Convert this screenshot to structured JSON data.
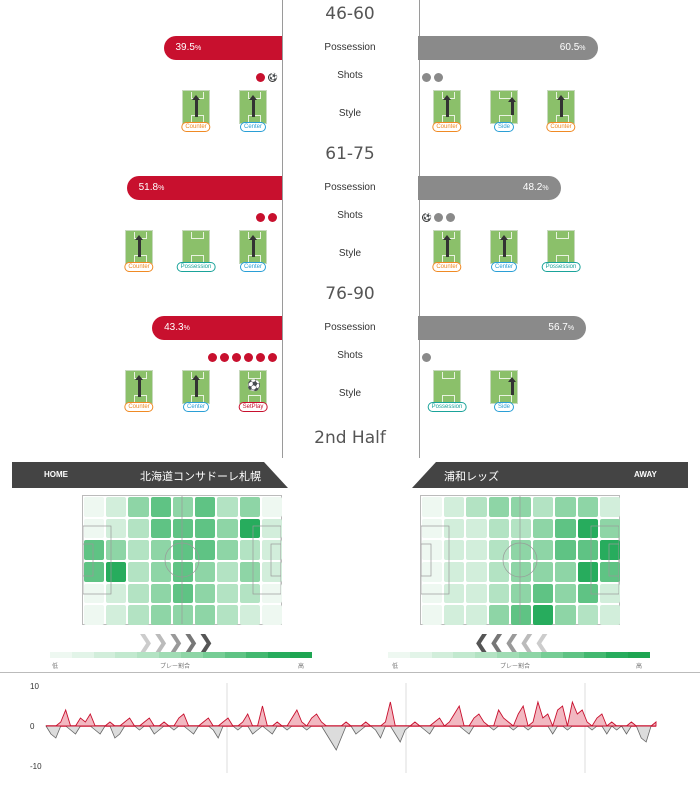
{
  "periods": [
    {
      "title": "46-60",
      "possession_label": "Possession",
      "shots_label": "Shots",
      "style_label": "Style",
      "home_pct": "39.5",
      "away_pct": "60.5",
      "pct_unit": "%",
      "home_shots": [
        "red",
        "ball"
      ],
      "away_shots": [
        "grey",
        "grey"
      ],
      "home_styles": [
        {
          "label": "Counter",
          "type": "counter"
        },
        {
          "label": "Center",
          "type": "center"
        }
      ],
      "away_styles": [
        {
          "label": "Counter",
          "type": "counter"
        },
        {
          "label": "Side",
          "type": "side"
        },
        {
          "label": "Counter",
          "type": "counter"
        }
      ]
    },
    {
      "title": "61-75",
      "possession_label": "Possession",
      "shots_label": "Shots",
      "style_label": "Style",
      "home_pct": "51.8",
      "away_pct": "48.2",
      "pct_unit": "%",
      "home_shots": [
        "red",
        "red"
      ],
      "away_shots": [
        "ball",
        "grey",
        "grey"
      ],
      "home_styles": [
        {
          "label": "Counter",
          "type": "counter"
        },
        {
          "label": "Possession",
          "type": "possession"
        },
        {
          "label": "Center",
          "type": "center"
        }
      ],
      "away_styles": [
        {
          "label": "Counter",
          "type": "counter"
        },
        {
          "label": "Center",
          "type": "center"
        },
        {
          "label": "Possession",
          "type": "possession"
        }
      ]
    },
    {
      "title": "76-90",
      "possession_label": "Possession",
      "shots_label": "Shots",
      "style_label": "Style",
      "home_pct": "43.3",
      "away_pct": "56.7",
      "pct_unit": "%",
      "home_shots": [
        "red",
        "red",
        "red",
        "red",
        "red",
        "red"
      ],
      "away_shots": [
        "grey"
      ],
      "home_styles": [
        {
          "label": "Counter",
          "type": "counter"
        },
        {
          "label": "Center",
          "type": "center"
        },
        {
          "label": "SetPlay",
          "type": "setplay"
        }
      ],
      "away_styles": [
        {
          "label": "Possession",
          "type": "possession"
        },
        {
          "label": "Side",
          "type": "side"
        }
      ]
    }
  ],
  "half_label": "2nd Half",
  "home": {
    "tag": "HOME",
    "name": "北海道コンサドーレ札幌"
  },
  "away": {
    "tag": "AWAY",
    "name": "浦和レッズ"
  },
  "legend": {
    "low": "低",
    "mid": "プレー割合",
    "high": "高"
  },
  "colors": {
    "home": "#c8102e",
    "away": "#8a8a8a",
    "heat": [
      "#eef8f1",
      "#d2eedb",
      "#b3e3c3",
      "#8ed5a6",
      "#5fc384",
      "#27ac5d"
    ]
  },
  "timeline": {
    "y_ticks": [
      "10",
      "0",
      "-10"
    ],
    "values": [
      0,
      -2,
      -3,
      1,
      4,
      -1,
      -2,
      2,
      1,
      3,
      -1,
      -2,
      0,
      1,
      -3,
      -2,
      1,
      2,
      0,
      -1,
      1,
      2,
      -2,
      -1,
      1,
      0,
      -1,
      2,
      3,
      -1,
      -2,
      0,
      1,
      2,
      -1,
      -3,
      1,
      2,
      0,
      -1,
      1,
      3,
      -2,
      -1,
      5,
      -1,
      -2,
      1,
      0,
      -1,
      2,
      4,
      1,
      -1,
      2,
      3,
      1,
      -2,
      -4,
      -6,
      -3,
      1,
      0,
      -2,
      -1,
      1,
      0,
      -1,
      -3,
      1,
      6,
      -2,
      -4,
      -1,
      0,
      1,
      0,
      -1,
      -2,
      1,
      2,
      0,
      1,
      3,
      5,
      -1,
      -2,
      2,
      3,
      1,
      0,
      -1,
      4,
      2,
      1,
      -1,
      3,
      5,
      -1,
      1,
      6,
      2,
      3,
      -2,
      4,
      5,
      -1,
      6,
      3,
      4,
      1,
      -1,
      2,
      3,
      -2,
      1,
      -1,
      0,
      -2,
      1,
      0,
      -3,
      -4,
      0,
      1
    ]
  }
}
